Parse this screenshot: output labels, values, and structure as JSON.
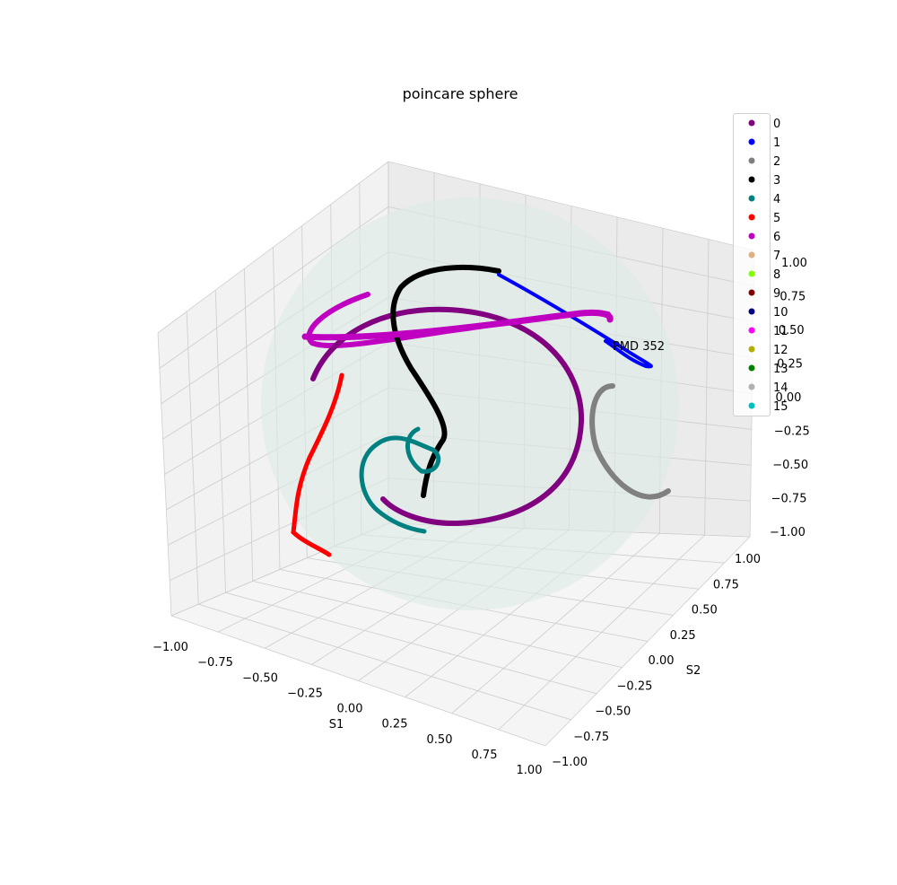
{
  "chart_data": {
    "type": "scatter",
    "projection": "3d",
    "title": "poincare sphere",
    "xlabel": "S1",
    "ylabel": "S2",
    "zlabel": "",
    "xlim": [
      -1,
      1
    ],
    "ylim": [
      -1,
      1
    ],
    "zlim": [
      -1,
      1
    ],
    "x_ticks": [
      "−1.00",
      "−0.75",
      "−0.50",
      "−0.25",
      "0.00",
      "0.25",
      "0.50",
      "0.75",
      "1.00"
    ],
    "y_ticks": [
      "−1.00",
      "−0.75",
      "−0.50",
      "−0.25",
      "0.00",
      "0.25",
      "0.50",
      "0.75",
      "1.00"
    ],
    "z_ticks": [
      "−1.00",
      "−0.75",
      "−0.50",
      "−0.25",
      "0.00",
      "0.25",
      "0.50",
      "0.75",
      "1.00"
    ],
    "grid": true,
    "sphere": {
      "radius": 1,
      "color": "#dcebe6"
    },
    "annotation": {
      "text": "PMD 352"
    },
    "legend": {
      "placement": "top-right"
    },
    "series": [
      {
        "name": "0",
        "color": "#800080"
      },
      {
        "name": "1",
        "color": "#0000ff"
      },
      {
        "name": "2",
        "color": "#808080"
      },
      {
        "name": "3",
        "color": "#000000"
      },
      {
        "name": "4",
        "color": "#008080"
      },
      {
        "name": "5",
        "color": "#ff0000"
      },
      {
        "name": "6",
        "color": "#c000c0"
      },
      {
        "name": "7",
        "color": "#e0b080"
      },
      {
        "name": "8",
        "color": "#80ff00"
      },
      {
        "name": "9",
        "color": "#800000"
      },
      {
        "name": "10",
        "color": "#000080"
      },
      {
        "name": "11",
        "color": "#ff00ff"
      },
      {
        "name": "12",
        "color": "#b0b000"
      },
      {
        "name": "13",
        "color": "#008000"
      },
      {
        "name": "14",
        "color": "#b0b0b0"
      },
      {
        "name": "15",
        "color": "#00c0c0"
      }
    ]
  }
}
